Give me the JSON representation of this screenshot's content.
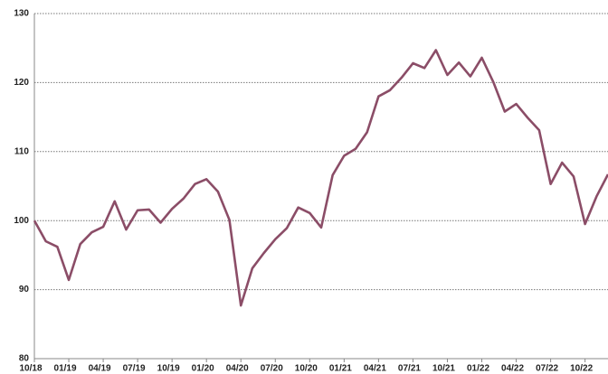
{
  "chart_data": {
    "type": "line",
    "categories": [
      "10/18",
      null,
      null,
      "01/19",
      null,
      null,
      "04/19",
      null,
      null,
      "07/19",
      null,
      null,
      "10/19",
      null,
      null,
      "01/20",
      null,
      null,
      "04/20",
      null,
      null,
      "07/20",
      null,
      null,
      "10/20",
      null,
      null,
      "01/21",
      null,
      null,
      "04/21",
      null,
      null,
      "07/21",
      null,
      null,
      "10/21",
      null,
      null,
      "01/22",
      null,
      null,
      "04/22",
      null,
      null,
      "07/22",
      null,
      null,
      "10/22",
      null,
      null
    ],
    "series": [
      {
        "name": null,
        "color": "#8b4d67",
        "values": [
          100,
          97.0,
          96.2,
          91.4,
          96.6,
          98.3,
          99.1,
          102.8,
          98.7,
          101.5,
          101.6,
          99.7,
          101.7,
          103.2,
          105.3,
          106.0,
          104.2,
          100.1,
          87.7,
          93.1,
          95.3,
          97.3,
          98.9,
          101.9,
          101.1,
          99.0,
          106.6,
          109.4,
          110.4,
          112.8,
          118.0,
          118.9,
          120.7,
          122.8,
          122.1,
          124.7,
          121.1,
          122.9,
          120.9,
          123.6,
          120.1,
          115.8,
          116.9,
          114.9,
          113.1,
          105.3,
          108.4,
          106.4,
          99.5,
          103.5,
          106.7
        ]
      }
    ],
    "ylim": [
      80,
      130
    ],
    "yticks": [
      80,
      90,
      100,
      110,
      120,
      130
    ],
    "grid": true
  }
}
